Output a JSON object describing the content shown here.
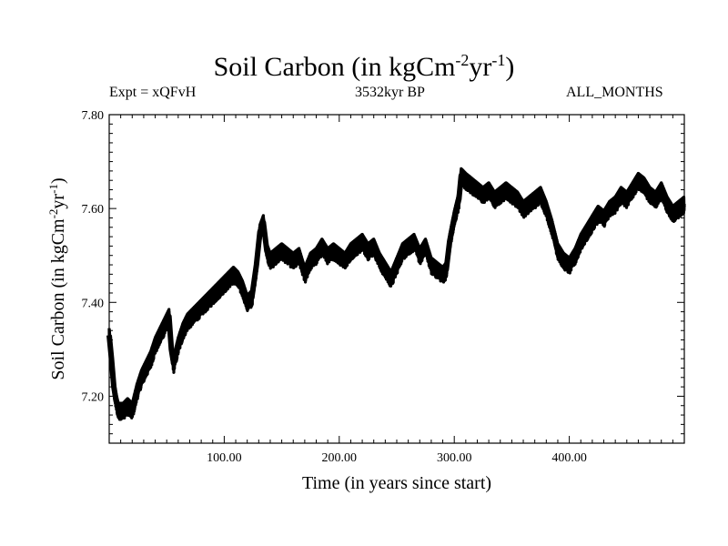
{
  "header": {
    "title_main": "Soil Carbon (in kgCm",
    "title_exp1": "-2",
    "title_mid": "yr",
    "title_exp2": "-1",
    "title_end": ")",
    "expt": "Expt = xQFvH",
    "period": "3532kyr BP",
    "months": "ALL_MONTHS"
  },
  "chart_data": {
    "type": "line",
    "title": "Soil Carbon (in kgCm-2yr-1)",
    "xlabel": "Time (in years since start)",
    "ylabel": "Soil Carbon (in kgCm-2yr-1)",
    "xlim": [
      0,
      500
    ],
    "ylim": [
      7.1,
      7.8
    ],
    "x_ticks": [
      100,
      200,
      300,
      400
    ],
    "x_tick_labels": [
      "100.00",
      "200.00",
      "300.00",
      "400.00"
    ],
    "y_ticks": [
      7.2,
      7.4,
      7.6,
      7.8
    ],
    "y_tick_labels": [
      "7.20",
      "7.40",
      "7.60",
      "7.80"
    ],
    "grid": false,
    "series": [
      {
        "color": "#000000",
        "band": 0.015,
        "x": [
          0,
          2,
          4,
          6,
          8,
          12,
          16,
          20,
          24,
          28,
          32,
          36,
          40,
          44,
          48,
          52,
          54,
          56,
          60,
          64,
          68,
          72,
          76,
          80,
          84,
          88,
          92,
          96,
          100,
          104,
          108,
          112,
          116,
          120,
          124,
          128,
          131,
          134,
          137,
          140,
          145,
          150,
          155,
          160,
          165,
          170,
          175,
          180,
          185,
          190,
          195,
          200,
          205,
          210,
          215,
          220,
          225,
          230,
          235,
          240,
          245,
          250,
          255,
          260,
          265,
          270,
          275,
          280,
          285,
          290,
          293,
          296,
          300,
          304,
          306,
          310,
          315,
          320,
          325,
          330,
          335,
          340,
          345,
          350,
          355,
          360,
          365,
          370,
          375,
          380,
          385,
          390,
          395,
          400,
          405,
          410,
          415,
          420,
          425,
          430,
          435,
          440,
          445,
          450,
          455,
          460,
          465,
          470,
          475,
          480,
          485,
          490,
          495,
          500
        ],
        "y": [
          7.33,
          7.28,
          7.22,
          7.19,
          7.17,
          7.17,
          7.18,
          7.17,
          7.21,
          7.24,
          7.26,
          7.28,
          7.31,
          7.33,
          7.35,
          7.37,
          7.3,
          7.27,
          7.31,
          7.34,
          7.36,
          7.37,
          7.38,
          7.39,
          7.4,
          7.41,
          7.42,
          7.43,
          7.44,
          7.45,
          7.46,
          7.45,
          7.43,
          7.4,
          7.41,
          7.48,
          7.55,
          7.57,
          7.51,
          7.49,
          7.5,
          7.51,
          7.5,
          7.49,
          7.5,
          7.46,
          7.49,
          7.5,
          7.52,
          7.5,
          7.51,
          7.5,
          7.49,
          7.51,
          7.52,
          7.53,
          7.51,
          7.52,
          7.49,
          7.47,
          7.45,
          7.48,
          7.51,
          7.52,
          7.53,
          7.5,
          7.52,
          7.48,
          7.47,
          7.46,
          7.47,
          7.53,
          7.58,
          7.62,
          7.67,
          7.66,
          7.65,
          7.64,
          7.63,
          7.64,
          7.62,
          7.63,
          7.64,
          7.63,
          7.62,
          7.6,
          7.61,
          7.62,
          7.63,
          7.6,
          7.56,
          7.51,
          7.49,
          7.48,
          7.5,
          7.53,
          7.55,
          7.57,
          7.59,
          7.58,
          7.6,
          7.61,
          7.63,
          7.62,
          7.64,
          7.66,
          7.65,
          7.63,
          7.62,
          7.64,
          7.61,
          7.59,
          7.6,
          7.61
        ]
      }
    ]
  }
}
